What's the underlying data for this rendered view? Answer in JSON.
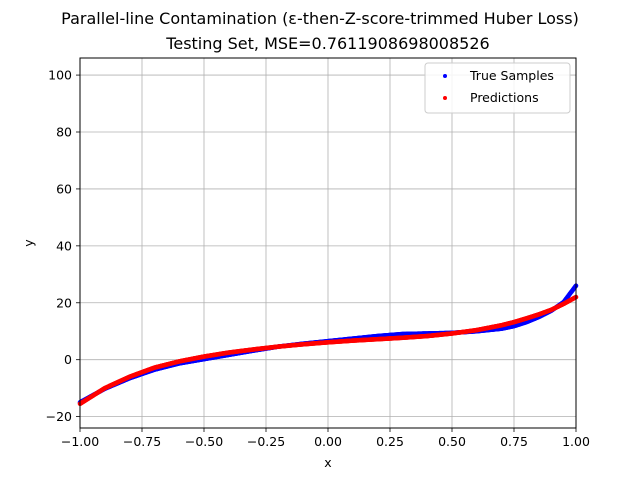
{
  "chart_data": {
    "type": "scatter",
    "title": "Parallel-line Contamination (ε-then-Z-score-trimmed Huber Loss)",
    "subtitle": "Testing Set, MSE=0.7611908698008526",
    "xlabel": "x",
    "ylabel": "y",
    "xlim": [
      -1.0,
      1.0
    ],
    "ylim": [
      -24,
      106
    ],
    "xticks": [
      -1.0,
      -0.75,
      -0.5,
      -0.25,
      0.0,
      0.25,
      0.5,
      0.75,
      1.0
    ],
    "xtick_labels": [
      "−1.00",
      "−0.75",
      "−0.50",
      "−0.25",
      "0.00",
      "0.25",
      "0.50",
      "0.75",
      "1.00"
    ],
    "yticks": [
      -20,
      0,
      20,
      40,
      60,
      80,
      100
    ],
    "ytick_labels": [
      "−20",
      "0",
      "20",
      "40",
      "60",
      "80",
      "100"
    ],
    "grid": true,
    "legend_position": "top-right",
    "series": [
      {
        "name": "True Samples",
        "color": "#0000ff",
        "x": [
          -1.0,
          -0.9,
          -0.8,
          -0.7,
          -0.6,
          -0.5,
          -0.4,
          -0.3,
          -0.2,
          -0.1,
          0.0,
          0.1,
          0.2,
          0.3,
          0.4,
          0.5,
          0.6,
          0.7,
          0.75,
          0.8,
          0.85,
          0.9,
          0.95,
          1.0
        ],
        "y": [
          -15.0,
          -10.2,
          -6.5,
          -3.5,
          -1.3,
          0.2,
          1.7,
          3.2,
          4.6,
          5.6,
          6.5,
          7.4,
          8.3,
          9.0,
          9.2,
          9.4,
          10.0,
          10.9,
          11.8,
          13.2,
          15.0,
          17.2,
          20.2,
          26.0
        ]
      },
      {
        "name": "Predictions",
        "color": "#ff0000",
        "x": [
          -1.0,
          -0.9,
          -0.8,
          -0.7,
          -0.6,
          -0.5,
          -0.4,
          -0.3,
          -0.2,
          -0.1,
          0.0,
          0.1,
          0.2,
          0.3,
          0.4,
          0.5,
          0.6,
          0.7,
          0.75,
          0.8,
          0.85,
          0.9,
          0.95,
          1.0
        ],
        "y": [
          -15.5,
          -10.0,
          -6.0,
          -2.8,
          -0.6,
          1.1,
          2.5,
          3.6,
          4.6,
          5.4,
          6.1,
          6.7,
          7.2,
          7.7,
          8.3,
          9.2,
          10.4,
          12.1,
          13.2,
          14.5,
          15.9,
          17.5,
          19.6,
          22.0
        ]
      }
    ]
  }
}
